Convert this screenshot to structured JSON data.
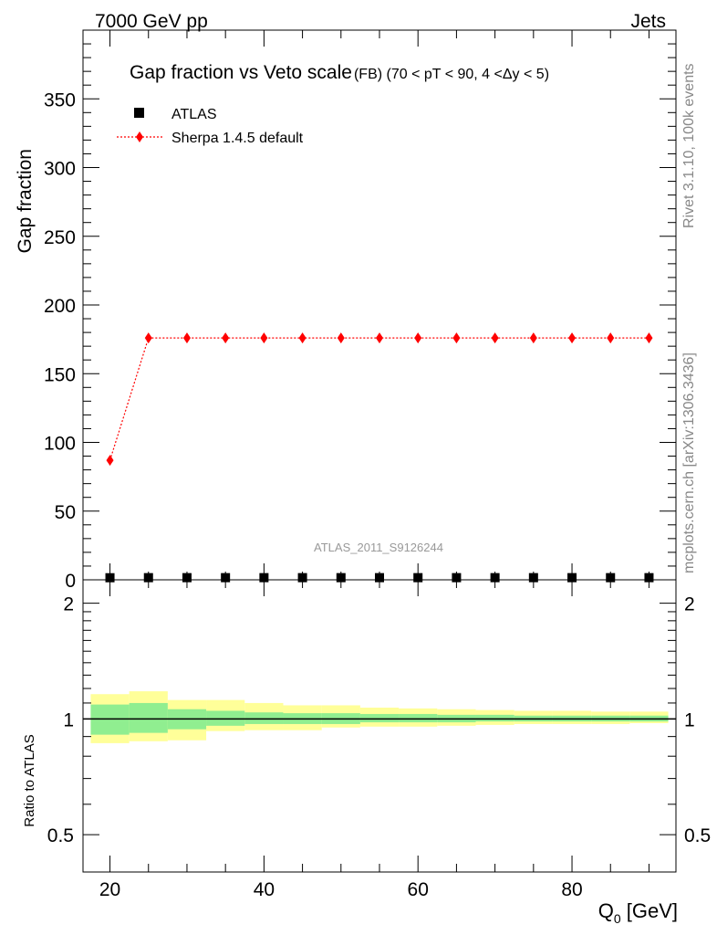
{
  "header": {
    "left": "7000 GeV pp",
    "right": "Jets"
  },
  "side_texts": {
    "rivet": "Rivet 3.1.10,  100k events",
    "mcplots": "mcplots.cern.ch [arXiv:1306.3436]"
  },
  "chart_data": [
    {
      "type": "scatter",
      "title": "Gap fraction vs Veto scale",
      "subtitle": "(FB) (70 < pT <  90, 4 <Δy < 5)",
      "ylabel": "Gap fraction",
      "xlim": [
        16.5,
        93.5
      ],
      "ylim": [
        0,
        400
      ],
      "yticks": [
        0,
        50,
        100,
        150,
        200,
        250,
        300,
        350
      ],
      "watermark": "ATLAS_2011_S9126244",
      "legend_position": "top-left",
      "series": [
        {
          "name": "ATLAS",
          "marker": "square",
          "color": "#000000",
          "x": [
            20,
            25,
            30,
            35,
            40,
            45,
            50,
            55,
            60,
            65,
            70,
            75,
            80,
            85,
            90
          ],
          "y": [
            0.85,
            0.9,
            0.9,
            0.9,
            0.9,
            0.9,
            0.9,
            0.9,
            0.9,
            0.9,
            0.9,
            0.9,
            0.9,
            0.9,
            0.9
          ]
        },
        {
          "name": "Sherpa 1.4.5 default",
          "marker": "diamond",
          "line": "dotted",
          "color": "#ff0000",
          "x": [
            20,
            25,
            30,
            35,
            40,
            45,
            50,
            55,
            60,
            65,
            70,
            75,
            80,
            85,
            90
          ],
          "y": [
            87,
            176,
            176,
            176,
            176,
            176,
            176,
            176,
            176,
            176,
            176,
            176,
            176,
            176,
            176
          ]
        }
      ]
    },
    {
      "type": "area",
      "ylabel": "Ratio to ATLAS",
      "xlabel": "Q",
      "xlabel_sub": "0",
      "xlabel_unit": " [GeV]",
      "xlim": [
        16.5,
        93.5
      ],
      "ylim": [
        0.4,
        2.3
      ],
      "scale": "log",
      "xticks": [
        20,
        40,
        60,
        80
      ],
      "yticks": [
        0.5,
        1,
        2
      ],
      "reference_line": 1,
      "bands": {
        "edges": [
          17.5,
          22.5,
          27.5,
          32.5,
          37.5,
          42.5,
          47.5,
          52.5,
          57.5,
          62.5,
          67.5,
          72.5,
          77.5,
          82.5,
          87.5,
          92.5
        ],
        "inner_color": "#90ee90",
        "outer_color": "#ffff99",
        "inner_low": [
          0.91,
          0.92,
          0.94,
          0.96,
          0.97,
          0.97,
          0.97,
          0.98,
          0.98,
          0.98,
          0.985,
          0.985,
          0.985,
          0.985,
          0.985
        ],
        "inner_high": [
          1.09,
          1.1,
          1.06,
          1.05,
          1.04,
          1.035,
          1.035,
          1.03,
          1.03,
          1.025,
          1.025,
          1.02,
          1.02,
          1.02,
          1.02
        ],
        "outer_low": [
          0.865,
          0.875,
          0.88,
          0.93,
          0.935,
          0.935,
          0.95,
          0.955,
          0.955,
          0.96,
          0.965,
          0.97,
          0.97,
          0.97,
          0.975
        ],
        "outer_high": [
          1.16,
          1.18,
          1.12,
          1.12,
          1.1,
          1.085,
          1.085,
          1.07,
          1.065,
          1.06,
          1.055,
          1.05,
          1.05,
          1.045,
          1.045
        ]
      }
    }
  ]
}
